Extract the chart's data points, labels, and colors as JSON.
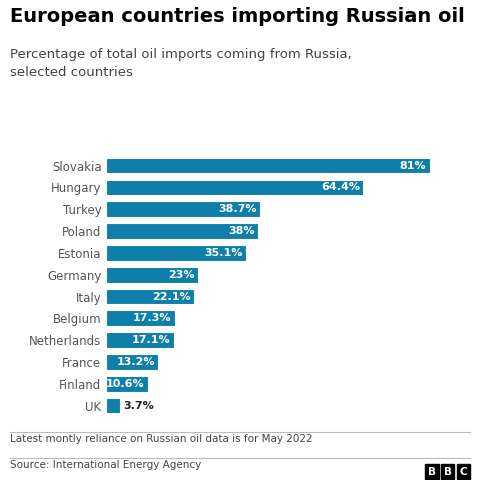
{
  "title": "European countries importing Russian oil",
  "subtitle": "Percentage of total oil imports coming from Russia,\nselected countries",
  "countries": [
    "Slovakia",
    "Hungary",
    "Turkey",
    "Poland",
    "Estonia",
    "Germany",
    "Italy",
    "Belgium",
    "Netherlands",
    "France",
    "Finland",
    "UK"
  ],
  "values": [
    81,
    64.4,
    38.7,
    38,
    35.1,
    23,
    22.1,
    17.3,
    17.1,
    13.2,
    10.6,
    3.7
  ],
  "labels": [
    "81%",
    "64.4%",
    "38.7%",
    "38%",
    "35.1%",
    "23%",
    "22.1%",
    "17.3%",
    "17.1%",
    "13.2%",
    "10.6%",
    "3.7%"
  ],
  "bar_color": "#0e7fa8",
  "background_color": "#ffffff",
  "title_fontsize": 14,
  "subtitle_fontsize": 9.5,
  "label_fontsize": 8,
  "country_fontsize": 8.5,
  "footer_text": "Latest montly reliance on Russian oil data is for May 2022",
  "source_text": "Source: International Energy Agency",
  "inside_label_threshold": 8,
  "xlim": [
    0,
    90
  ]
}
